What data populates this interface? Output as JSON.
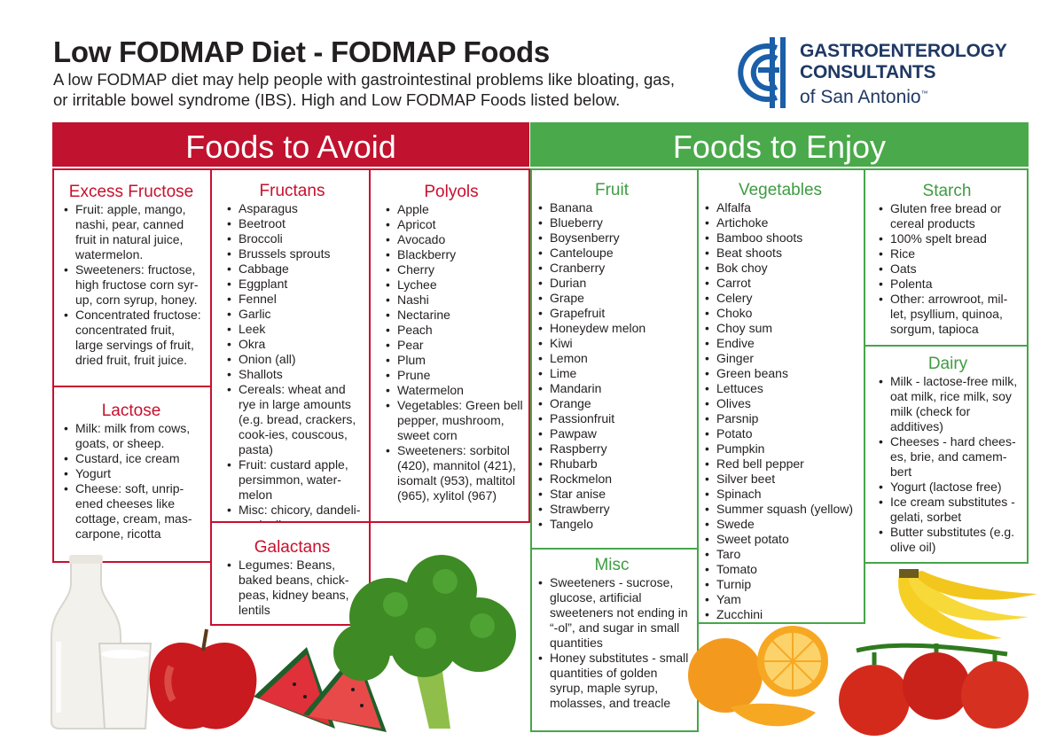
{
  "header": {
    "title": "Low FODMAP Diet - FODMAP Foods",
    "subtitle": "A low FODMAP diet may help people with gastrointestinal problems like bloating, gas, or irritable bowel syndrome (IBS). High and Low FODMAP Foods listed below."
  },
  "logo": {
    "line1": "GASTROENTEROLOGY",
    "line2": "CONSULTANTS",
    "line3": "of San Antonio",
    "trademark": "™",
    "color": "#1f3864"
  },
  "avoid": {
    "heading": "Foods to Avoid",
    "color": "#c1122f",
    "excess_fructose": {
      "title": "Excess Fructose",
      "items": [
        "Fruit: apple, mango, nashi, pear, canned fruit in natural juice, watermelon.",
        "Sweeteners: fructose, high fructose corn syr-up, corn syrup, honey.",
        "Concentrated fructose: concentrated fruit, large servings of fruit, dried fruit, fruit juice."
      ]
    },
    "lactose": {
      "title": "Lactose",
      "items": [
        "Milk: milk from cows, goats, or sheep.",
        "Custard, ice cream",
        "Yogurt",
        "Cheese: soft, unrip-ened cheeses like cottage, cream, mas-carpone, ricotta"
      ]
    },
    "fructans": {
      "title": "Fructans",
      "items": [
        "Asparagus",
        "Beetroot",
        "Broccoli",
        "Brussels sprouts",
        "Cabbage",
        "Eggplant",
        "Fennel",
        "Garlic",
        "Leek",
        "Okra",
        "Onion (all)",
        "Shallots",
        "Cereals: wheat and rye in large amounts (e.g. bread, crackers, cook-ies, couscous, pasta)",
        "Fruit: custard apple, persimmon, water-melon",
        "Misc: chicory, dandeli-on, inulin"
      ]
    },
    "galactans": {
      "title": "Galactans",
      "items": [
        "Legumes: Beans, baked beans, chick-peas, kidney beans, lentils"
      ]
    },
    "polyols": {
      "title": "Polyols",
      "items": [
        "Apple",
        "Apricot",
        "Avocado",
        "Blackberry",
        "Cherry",
        "Lychee",
        "Nashi",
        "Nectarine",
        "Peach",
        "Pear",
        "Plum",
        "Prune",
        "Watermelon",
        "Vegetables: Green bell pepper, mushroom, sweet corn",
        "Sweeteners: sorbitol (420), mannitol (421), isomalt (953), maltitol (965), xylitol (967)"
      ]
    }
  },
  "enjoy": {
    "heading": "Foods to Enjoy",
    "color": "#4aa94a",
    "fruit": {
      "title": "Fruit",
      "items": [
        "Banana",
        "Blueberry",
        "Boysenberry",
        "Canteloupe",
        "Cranberry",
        "Durian",
        "Grape",
        "Grapefruit",
        "Honeydew melon",
        "Kiwi",
        "Lemon",
        "Lime",
        "Mandarin",
        "Orange",
        "Passionfruit",
        "Pawpaw",
        "Raspberry",
        "Rhubarb",
        "Rockmelon",
        "Star anise",
        "Strawberry",
        "Tangelo"
      ]
    },
    "misc": {
      "title": "Misc",
      "items": [
        "Sweeteners - sucrose, glucose, artificial sweeteners not ending in “-ol”, and sugar in small quantities",
        "Honey substitutes - small quantities of golden syrup, maple syrup, molasses, and treacle"
      ]
    },
    "vegetables": {
      "title": "Vegetables",
      "items": [
        "Alfalfa",
        "Artichoke",
        "Bamboo shoots",
        "Beat shoots",
        "Bok choy",
        "Carrot",
        "Celery",
        "Choko",
        "Choy sum",
        "Endive",
        "Ginger",
        "Green beans",
        "Lettuces",
        "Olives",
        "Parsnip",
        "Potato",
        "Pumpkin",
        "Red bell pepper",
        "Silver beet",
        "Spinach",
        "Summer squash (yellow)",
        "Swede",
        "Sweet potato",
        "Taro",
        "Tomato",
        "Turnip",
        "Yam",
        "Zucchini"
      ]
    },
    "starch": {
      "title": "Starch",
      "items": [
        "Gluten free bread or cereal products",
        "100% spelt bread",
        "Rice",
        "Oats",
        "Polenta",
        "Other: arrowroot, mil-let, psyllium, quinoa, sorgum, tapioca"
      ]
    },
    "dairy": {
      "title": "Dairy",
      "items": [
        "Milk - lactose-free milk, oat milk, rice milk, soy milk (check for additives)",
        "Cheeses - hard chees-es, brie, and camem-bert",
        "Yogurt (lactose free)",
        "Ice cream substitutes - gelati, sorbet",
        "Butter substitutes (e.g. olive oil)"
      ]
    }
  },
  "images": [
    "milk-bottle",
    "glass-of-milk",
    "red-apple",
    "watermelon-slices",
    "broccoli",
    "oranges",
    "bananas",
    "tomatoes"
  ]
}
